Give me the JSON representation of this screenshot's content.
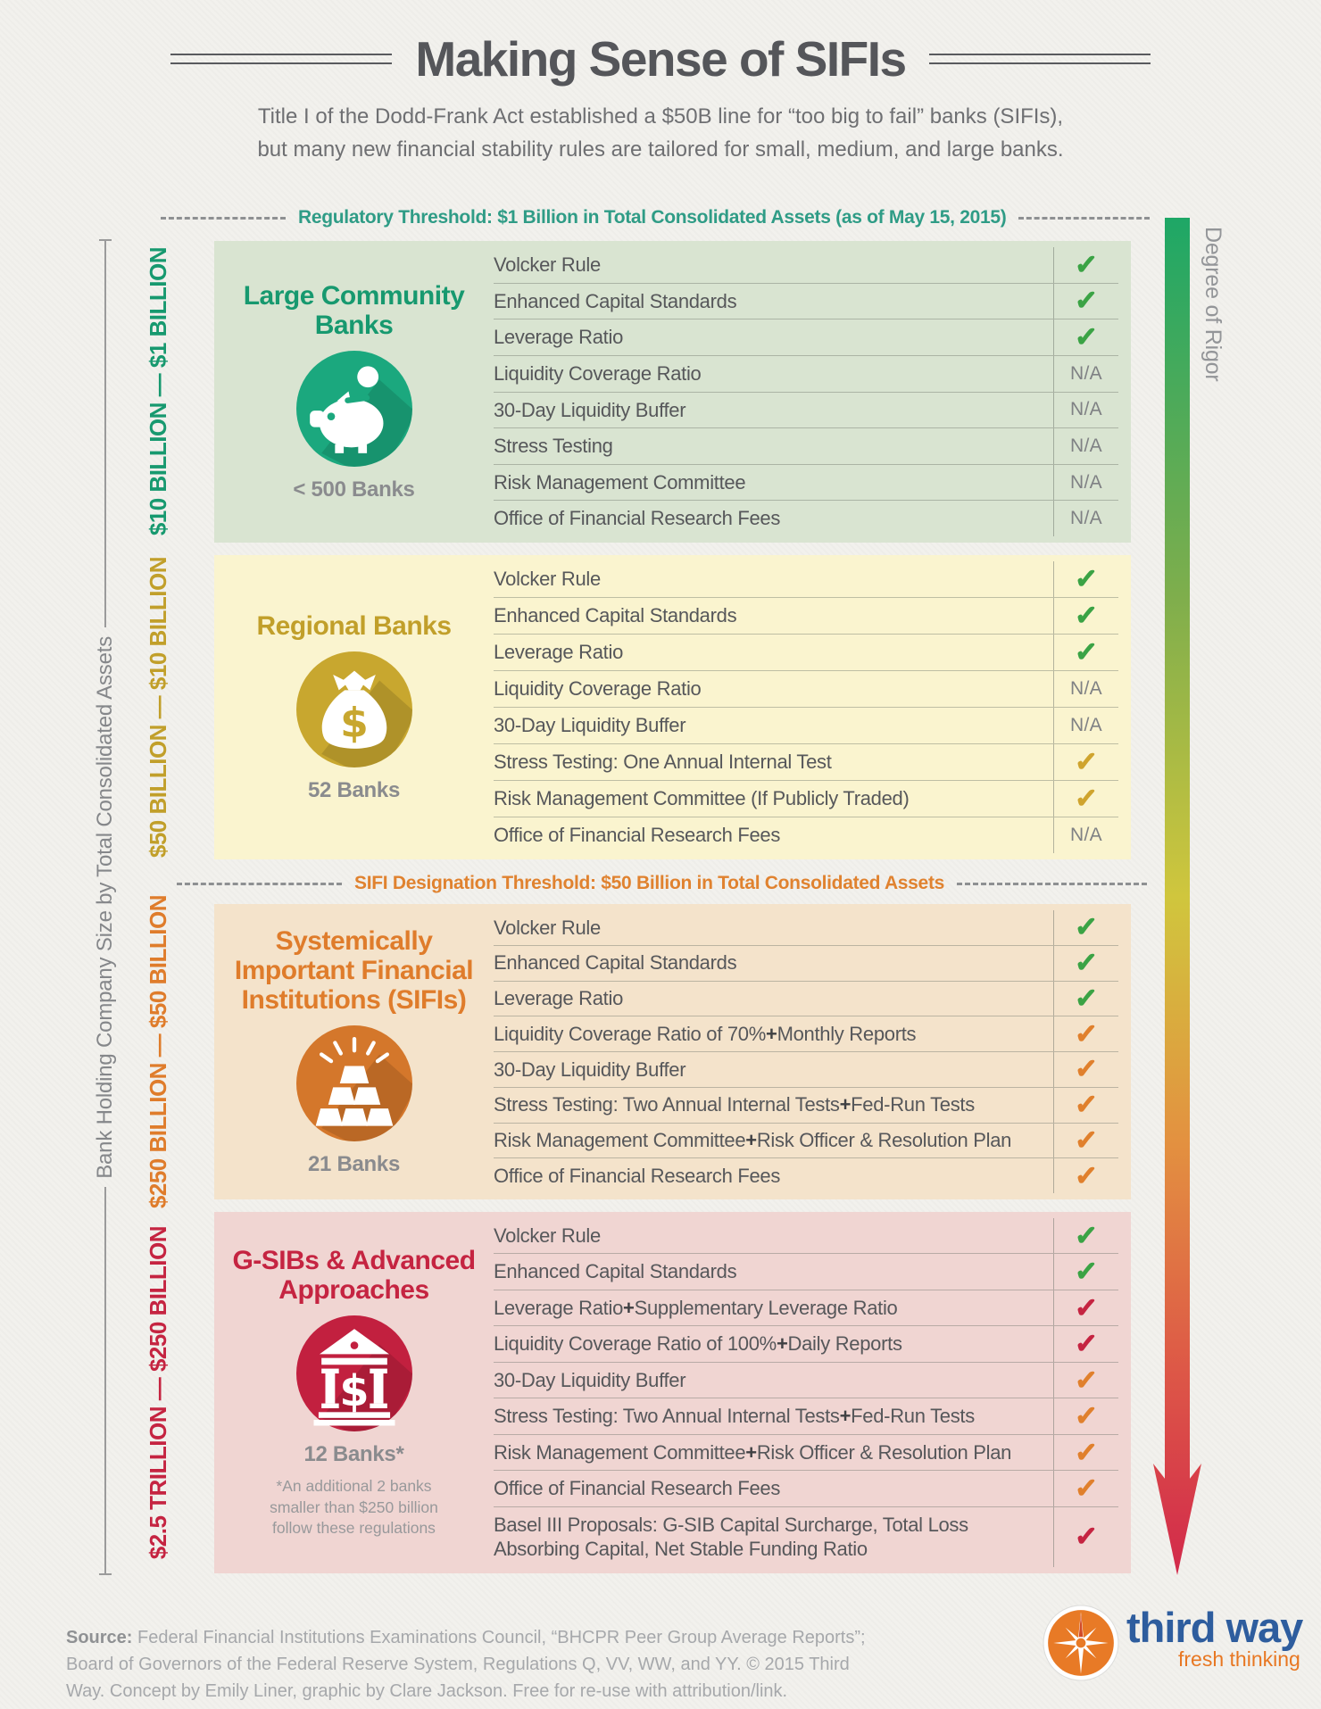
{
  "header": {
    "title": "Making Sense of SIFIs",
    "subtitle_line1": "Title I of the Dodd-Frank Act established a $50B line for “too big to fail” banks (SIFIs),",
    "subtitle_line2": "but many new financial stability rules are tailored for small, medium, and large banks."
  },
  "thresholds": {
    "regulatory": "Regulatory Threshold: $1 Billion in Total Consolidated Assets (as of May 15, 2015)",
    "sifi": "SIFI Designation Threshold: $50 Billion in Total Consolidated Assets"
  },
  "axes": {
    "left_label": "Bank Holding Company Size by Total Consolidated Assets",
    "right_label": "Degree of Rigor"
  },
  "checks": {
    "glyph": "✓",
    "na_text": "N/A",
    "green": "#3ba345",
    "gold": "#cfa42e",
    "orange": "#e0802d",
    "red": "#c52441"
  },
  "arrow_gradient": [
    "#1ea766",
    "#7fae4c",
    "#d0c63d",
    "#e39140",
    "#dd5747",
    "#d2294b"
  ],
  "sections": [
    {
      "id": "large-community-banks",
      "title_lines": [
        "Large Community",
        "Banks"
      ],
      "icon": "piggy-bank",
      "count": "< 500 Banks",
      "note": [],
      "range_label": "$10 BILLION — $1 BILLION",
      "theme": {
        "bg": "#d9e4d1",
        "title": "#17996f",
        "circle": "#1ba87e",
        "range": "#17996f"
      },
      "rows": [
        {
          "label": "Volcker Rule",
          "check": "green"
        },
        {
          "label": "Enhanced Capital Standards",
          "check": "green"
        },
        {
          "label": "Leverage Ratio",
          "check": "green"
        },
        {
          "label": "Liquidity Coverage Ratio",
          "check": "na"
        },
        {
          "label": "30-Day Liquidity Buffer",
          "check": "na"
        },
        {
          "label": "Stress Testing",
          "check": "na"
        },
        {
          "label": "Risk Management Committee",
          "check": "na"
        },
        {
          "label": "Office of Financial Research Fees",
          "check": "na"
        }
      ]
    },
    {
      "id": "regional-banks",
      "title_lines": [
        "Regional Banks"
      ],
      "icon": "money-bag",
      "count": "52 Banks",
      "note": [],
      "range_label": "$50 BILLION — $10 BILLION",
      "theme": {
        "bg": "#faf4cf",
        "title": "#c19f2a",
        "circle": "#c8a72f",
        "range": "#c19f2a"
      },
      "rows": [
        {
          "label": "Volcker Rule",
          "check": "green"
        },
        {
          "label": "Enhanced Capital Standards",
          "check": "green"
        },
        {
          "label": "Leverage Ratio",
          "check": "green"
        },
        {
          "label": "Liquidity Coverage Ratio",
          "check": "na"
        },
        {
          "label": "30-Day Liquidity Buffer",
          "check": "na"
        },
        {
          "label": "Stress Testing: One Annual Internal Test",
          "check": "gold"
        },
        {
          "label": "Risk Management Committee (If Publicly Traded)",
          "check": "gold"
        },
        {
          "label": "Office of Financial Research Fees",
          "check": "na"
        }
      ]
    },
    {
      "id": "sifis",
      "title_lines": [
        "Systemically",
        "Important Financial",
        "Institutions (SIFIs)"
      ],
      "icon": "gold-bars",
      "count": "21 Banks",
      "note": [],
      "range_label": "$250 BILLION — $50 BILLION",
      "theme": {
        "bg": "#f4e3cb",
        "title": "#df7c2b",
        "circle": "#d4772b",
        "range": "#df7c2b"
      },
      "rows": [
        {
          "label": "Volcker Rule",
          "check": "green"
        },
        {
          "label": "Enhanced Capital Standards",
          "check": "green"
        },
        {
          "label": "Leverage Ratio",
          "check": "green"
        },
        {
          "label": "Liquidity Coverage Ratio of 70% + Monthly Reports",
          "check": "orange"
        },
        {
          "label": "30-Day Liquidity Buffer",
          "check": "orange"
        },
        {
          "label": "Stress Testing: Two Annual Internal Tests + Fed-Run Tests",
          "check": "orange"
        },
        {
          "label": "Risk Management Committee + Risk Officer & Resolution Plan",
          "check": "orange"
        },
        {
          "label": "Office of Financial Research Fees",
          "check": "orange"
        }
      ]
    },
    {
      "id": "gsibs-advanced-approaches",
      "title_lines": [
        "G-SIBs & Advanced",
        "Approaches"
      ],
      "icon": "bank-building",
      "count": "12 Banks*",
      "note": [
        "*An additional 2 banks",
        "smaller than $250 billion",
        "follow these regulations"
      ],
      "range_label": "$2.5 TRILLION — $250 BILLION",
      "theme": {
        "bg": "#f0d5d2",
        "title": "#c52441",
        "circle": "#c2203f",
        "range": "#c52441"
      },
      "rows": [
        {
          "label": "Volcker Rule",
          "check": "green"
        },
        {
          "label": "Enhanced Capital Standards",
          "check": "green"
        },
        {
          "label": "Leverage Ratio + Supplementary Leverage Ratio",
          "check": "red"
        },
        {
          "label": "Liquidity Coverage Ratio of 100% + Daily Reports",
          "check": "red"
        },
        {
          "label": "30-Day Liquidity Buffer",
          "check": "orange"
        },
        {
          "label": "Stress Testing: Two Annual Internal Tests + Fed-Run Tests",
          "check": "orange"
        },
        {
          "label": "Risk Management Committee + Risk Officer & Resolution Plan",
          "check": "orange"
        },
        {
          "label": "Office of Financial Research Fees",
          "check": "orange"
        },
        {
          "label": "Basel III Proposals: G-SIB Capital Surcharge, Total Loss Absorbing Capital, Net Stable Funding Ratio",
          "check": "red"
        }
      ]
    }
  ],
  "footer": {
    "source_label": "Source:",
    "line1": " Federal Financial Institutions Examinations Council, “BHCPR Peer Group Average Reports”;",
    "line2": "Board of Governors of the Federal Reserve System, Regulations Q, VV, WW, and YY. © 2015 Third",
    "line3": "Way. Concept by Emily Liner, graphic by Clare Jackson. Free for re-use with attribution/link.",
    "logo_name": "third way",
    "logo_tagline": "fresh thinking"
  }
}
